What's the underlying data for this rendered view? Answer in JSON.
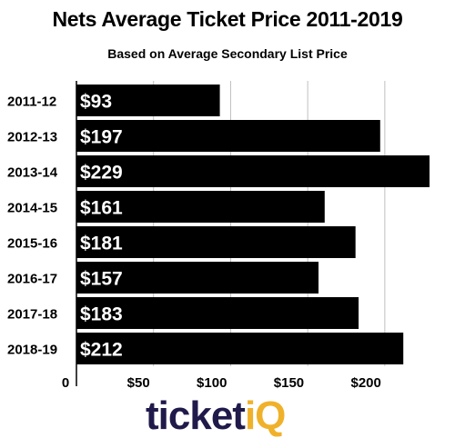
{
  "chart_data": {
    "type": "bar",
    "orientation": "horizontal",
    "title": "Nets Average Ticket Price 2011-2019",
    "subtitle": "Based on Average Secondary List Price",
    "categories": [
      "2011-12",
      "2012-13",
      "2013-14",
      "2014-15",
      "2015-16",
      "2016-17",
      "2017-18",
      "2018-19"
    ],
    "values": [
      93,
      197,
      229,
      161,
      181,
      157,
      183,
      212
    ],
    "data_labels": [
      "$93",
      "$197",
      "$229",
      "$161",
      "$181",
      "$157",
      "$183",
      "$212"
    ],
    "x_ticks": [
      0,
      50,
      100,
      150,
      200
    ],
    "x_tick_labels": [
      "0",
      "$50",
      "$100",
      "$150",
      "$200"
    ],
    "xlim": [
      0,
      229
    ],
    "grid": true,
    "bar_color": "#000000",
    "label_color": "#ffffff",
    "grid_color": "#bfbfbf"
  },
  "branding": {
    "logo_dark": "ticket",
    "logo_accent": "iQ",
    "dark_color": "#201a4b",
    "accent_color": "#f0b12a"
  }
}
